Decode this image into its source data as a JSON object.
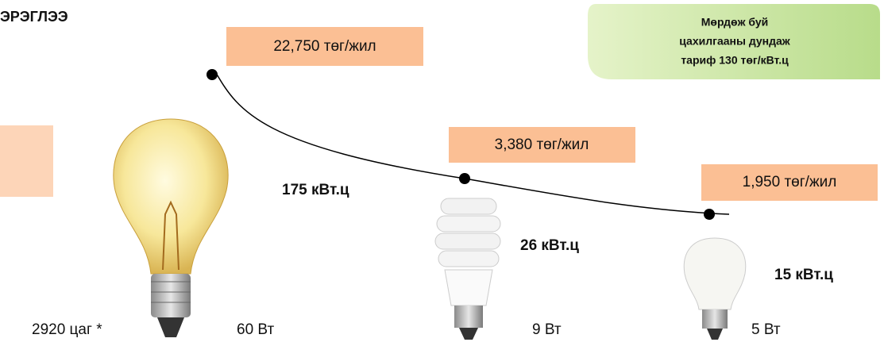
{
  "header": {
    "title": "ЭРЭГЛЭЭ"
  },
  "note": {
    "lines": [
      "Мөрдөж буй",
      "цахилгааны дундаж",
      "тариф 130 төг/кВт.ц"
    ]
  },
  "hours": "2920 цаг *",
  "bulbs": [
    {
      "cost": "22,750 төг/жил",
      "energy": "175 кВт.ц",
      "power": "60 Вт"
    },
    {
      "cost": "3,380 төг/жил",
      "energy": "26 кВт.ц",
      "power": "9 Вт"
    },
    {
      "cost": "1,950 төг/жил",
      "energy": "15 кВт.ц",
      "power": "5 Вт"
    }
  ]
}
